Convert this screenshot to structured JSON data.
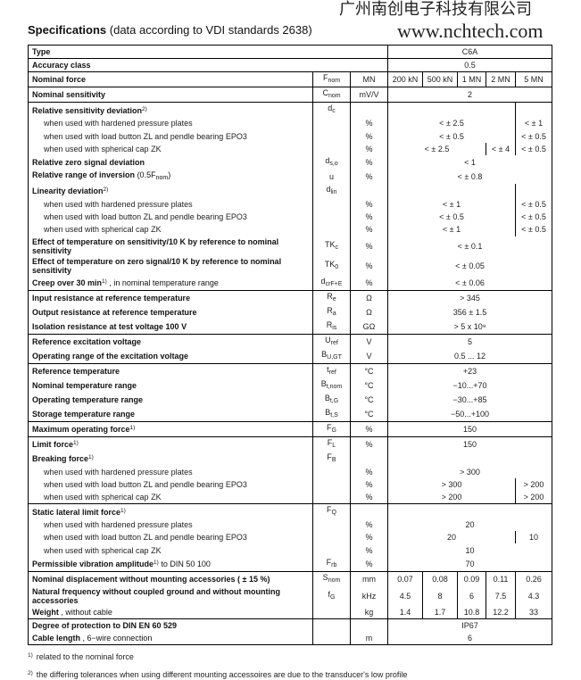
{
  "title": {
    "bold": "Specifications",
    "rest": "(data according to VDI standards 2638)"
  },
  "watermark": {
    "company": "广州南创电子科技有限公司",
    "url": "www.nchtech.com"
  },
  "groups": [
    [
      {
        "label": "Type",
        "wide": true,
        "vals": [
          [
            "C6A",
            5
          ]
        ]
      }
    ],
    [
      {
        "label": "Accuracy class",
        "wide": true,
        "vals": [
          [
            "0.5",
            5
          ]
        ]
      }
    ],
    [
      {
        "label": "Nominal force",
        "sym": "F",
        "sub": "nom",
        "unit": "MN",
        "vals": [
          [
            "200 kN",
            1
          ],
          [
            "500 kN",
            1
          ],
          [
            "1 MN",
            1
          ],
          [
            "2 MN",
            1
          ],
          [
            "5 MN",
            1
          ]
        ]
      }
    ],
    [
      {
        "label": "Nominal sensitivity",
        "sym": "C",
        "sub": "nom",
        "unit": "mV/V",
        "vals": [
          [
            "2",
            5
          ]
        ]
      }
    ],
    [
      {
        "label": "Relative sensitivity deviation",
        "note": "2)",
        "sym": "d",
        "sub": "c",
        "unit": "",
        "vals": [
          [
            "",
            4
          ],
          [
            "",
            1
          ]
        ]
      },
      {
        "label": "when used with hardened pressure plates",
        "subitem": true,
        "unit": "%",
        "vals": [
          [
            "< ± 2.5",
            4
          ],
          [
            "< ± 1",
            1
          ]
        ]
      },
      {
        "label": "when used with load button ZL and pendle bearing EPO3",
        "subitem": true,
        "unit": "%",
        "vals": [
          [
            "< ± 0.5",
            4
          ],
          [
            "< ± 0.5",
            1
          ]
        ]
      },
      {
        "label": "when used with spherical cap ZK",
        "subitem": true,
        "unit": "%",
        "vals": [
          [
            "< ± 2.5",
            3
          ],
          [
            "< ± 4",
            1
          ],
          [
            "< ± 0.5",
            1
          ]
        ]
      },
      {
        "label": "Relative zero signal deviation",
        "sym": "d",
        "sub": "s,o",
        "unit": "%",
        "vals": [
          [
            "< 1",
            5
          ]
        ]
      },
      {
        "label": "Relative range of inversion",
        "extra": "(0.5F",
        "extra_sub": "nom",
        "extra_end": ")",
        "sym": "u",
        "unit": "%",
        "vals": [
          [
            "< ± 0.8",
            5
          ]
        ]
      },
      {
        "label": "Linearity deviation",
        "note": "2)",
        "sym": "d",
        "sub": "lin",
        "unit": "",
        "vals": [
          [
            "",
            4
          ],
          [
            "",
            1
          ]
        ]
      },
      {
        "label": "when used with hardened pressure plates",
        "subitem": true,
        "unit": "%",
        "vals": [
          [
            "< ± 1",
            4
          ],
          [
            "< ± 0.5",
            1
          ]
        ]
      },
      {
        "label": "when used with load button ZL and pendle bearing EPO3",
        "subitem": true,
        "unit": "%",
        "vals": [
          [
            "< ± 0.5",
            4
          ],
          [
            "< ± 0.5",
            1
          ]
        ]
      },
      {
        "label": "when used with spherical cap ZK",
        "subitem": true,
        "unit": "%",
        "vals": [
          [
            "< ± 1",
            4
          ],
          [
            "< ± 0.5",
            1
          ]
        ]
      },
      {
        "label": "Effect of temperature on sensitivity/10 K by reference to nominal sensitivity",
        "sym": "TK",
        "sub": "c",
        "unit": "%",
        "vals": [
          [
            "< ± 0.1",
            5
          ]
        ]
      },
      {
        "label": "Effect of temperature on zero signal/10 K by reference to nominal sensitivity",
        "sym": "TK",
        "sub": "0",
        "unit": "%",
        "vals": [
          [
            "< ± 0.05",
            5
          ]
        ]
      },
      {
        "label": "Creep over 30 min",
        "extra": ", in nominal temperature range",
        "note": "1)",
        "sym": "d",
        "sub": "crF+E",
        "unit": "%",
        "vals": [
          [
            "< ± 0.06",
            5
          ]
        ]
      }
    ],
    [
      {
        "label": "Input resistance at reference temperature",
        "sym": "R",
        "sub": "e",
        "unit": "Ω",
        "vals": [
          [
            "> 345",
            5
          ]
        ]
      },
      {
        "label": "Output resistance at reference temperature",
        "sym": "R",
        "sub": "a",
        "unit": "Ω",
        "vals": [
          [
            "356 ± 1.5",
            5
          ]
        ]
      },
      {
        "label": "Isolation resistance at test voltage 100 V",
        "sym": "R",
        "sub": "is",
        "unit": "GΩ",
        "vals": [
          [
            "> 5 x 10⁹",
            5
          ]
        ]
      }
    ],
    [
      {
        "label": "Reference excitation voltage",
        "sym": "U",
        "sub": "ref",
        "unit": "V",
        "vals": [
          [
            "5",
            5
          ]
        ]
      },
      {
        "label": "Operating range of the excitation voltage",
        "sym": "B",
        "sub": "U,GT",
        "unit": "V",
        "vals": [
          [
            "0.5 ... 12",
            5
          ]
        ]
      }
    ],
    [
      {
        "label": "Reference temperature",
        "sym": "t",
        "sub": "ref",
        "unit": "°C",
        "vals": [
          [
            "+23",
            5
          ]
        ]
      },
      {
        "label": "Nominal temperature range",
        "sym": "B",
        "sub": "t,nom",
        "unit": "°C",
        "vals": [
          [
            "−10...+70",
            5
          ]
        ]
      },
      {
        "label": "Operating temperature range",
        "sym": "B",
        "sub": "t,G",
        "unit": "°C",
        "vals": [
          [
            "−30...+85",
            5
          ]
        ]
      },
      {
        "label": "Storage temperature range",
        "sym": "B",
        "sub": "t,S",
        "unit": "°C",
        "vals": [
          [
            "−50...+100",
            5
          ]
        ]
      }
    ],
    [
      {
        "label": "Maximum operating force",
        "note": "1)",
        "sym": "F",
        "sub": "G",
        "unit": "%",
        "vals": [
          [
            "150",
            5
          ]
        ]
      }
    ],
    [
      {
        "label": "Limit force",
        "note": "1)",
        "sym": "F",
        "sub": "L",
        "unit": "%",
        "vals": [
          [
            "150",
            5
          ]
        ]
      },
      {
        "label": "Breaking force",
        "note": "1)",
        "sym": "F",
        "sub": "B",
        "unit": "",
        "vals": [
          [
            "",
            5
          ]
        ]
      },
      {
        "label": "when used with hardened pressure plates",
        "subitem": true,
        "unit": "%",
        "vals": [
          [
            "> 300",
            5
          ]
        ]
      },
      {
        "label": "when used with load button ZL and pendle bearing EPO3",
        "subitem": true,
        "unit": "%",
        "vals": [
          [
            "> 300",
            4
          ],
          [
            "> 200",
            1
          ]
        ]
      },
      {
        "label": "when used with spherical cap ZK",
        "subitem": true,
        "unit": "%",
        "vals": [
          [
            "> 200",
            4
          ],
          [
            "> 200",
            1
          ]
        ]
      }
    ],
    [
      {
        "label": "Static lateral limit force",
        "note": "1)",
        "sym": "F",
        "sub": "Q",
        "unit": "",
        "vals": [
          [
            "",
            5
          ]
        ]
      },
      {
        "label": "when used with hardened pressure plates",
        "subitem": true,
        "unit": "%",
        "vals": [
          [
            "20",
            5
          ]
        ]
      },
      {
        "label": "when used with load button ZL and pendle bearing EPO3",
        "subitem": true,
        "unit": "%",
        "vals": [
          [
            "20",
            4
          ],
          [
            "10",
            1
          ]
        ]
      },
      {
        "label": "when used with spherical cap ZK",
        "subitem": true,
        "unit": "%",
        "vals": [
          [
            "10",
            5
          ]
        ]
      },
      {
        "label": "Permissible vibration amplitude",
        "note": "1)",
        "extra": "to DIN 50 100",
        "sym": "F",
        "sub": "rb",
        "unit": "%",
        "vals": [
          [
            "70",
            5
          ]
        ]
      }
    ],
    [
      {
        "label": "Nominal displacement without mounting accessories ( ± 15 %)",
        "sym": "S",
        "sub": "nom",
        "unit": "mm",
        "vals": [
          [
            "0.07",
            1
          ],
          [
            "0.08",
            1
          ],
          [
            "0.09",
            1
          ],
          [
            "0.11",
            1
          ],
          [
            "0.26",
            1
          ]
        ]
      },
      {
        "label": "Natural frequency without coupled ground and without mounting accessories",
        "sym": "f",
        "sub": "G",
        "unit": "kHz",
        "vals": [
          [
            "4.5",
            1
          ],
          [
            "8",
            1
          ],
          [
            "6",
            1
          ],
          [
            "7.5",
            1
          ],
          [
            "4.3",
            1
          ]
        ]
      },
      {
        "label": "Weight",
        "extra": ", without cable",
        "unit": "kg",
        "vals": [
          [
            "1.4",
            1
          ],
          [
            "1.7",
            1
          ],
          [
            "10.8",
            1
          ],
          [
            "12.2",
            1
          ],
          [
            "33",
            1
          ]
        ]
      }
    ],
    [
      {
        "label": "Degree of protection to DIN EN 60 529",
        "unit": "",
        "vals": [
          [
            "IP67",
            5
          ]
        ]
      },
      {
        "label": "Cable length",
        "extra": ", 6−wire connection",
        "unit": "m",
        "vals": [
          [
            "6",
            5
          ]
        ]
      }
    ]
  ],
  "footnotes": [
    {
      "mark": "1)",
      "text": "related to the nominal force"
    },
    {
      "mark": "2)",
      "text": "the differing tolerances when using different mounting accessoires are due to the transducer's low profile"
    }
  ]
}
